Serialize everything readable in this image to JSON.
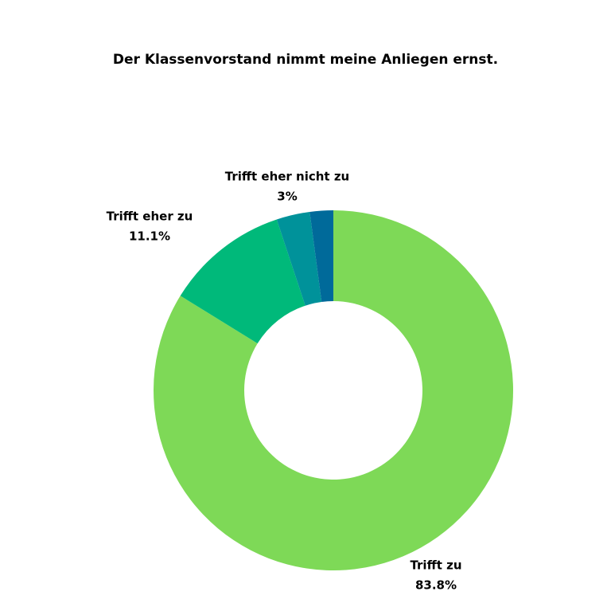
{
  "chart_data": {
    "type": "donut",
    "title": "Der Klassenvorstand nimmt meine Anliegen ernst.",
    "categories": [
      "Trifft zu",
      "Trifft eher zu",
      "Trifft eher nicht zu",
      null
    ],
    "values": [
      83.8,
      11.1,
      3,
      2.1
    ],
    "value_labels": [
      "83.8%",
      "11.1%",
      "3%",
      null
    ],
    "colors": [
      "#7ed957",
      "#00b97a",
      "#00929a",
      "#006a9a"
    ]
  }
}
